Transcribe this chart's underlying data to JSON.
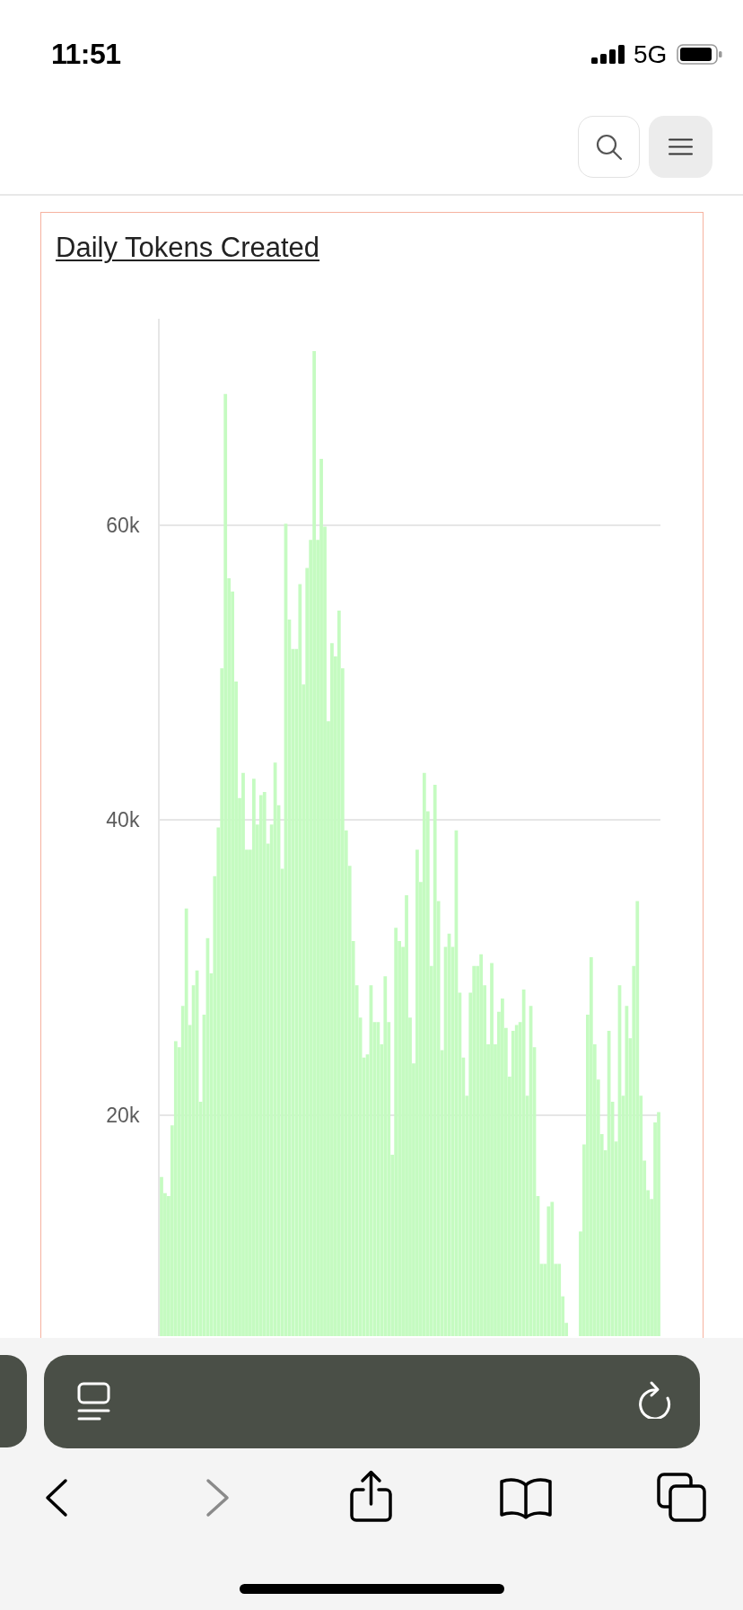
{
  "chart_data": {
    "type": "bar",
    "title": "Daily Tokens Created",
    "categories": [
      null,
      null,
      null,
      null,
      null,
      null,
      null,
      null,
      null,
      null,
      null,
      null,
      null,
      null,
      null,
      null,
      null,
      null,
      null,
      null,
      null,
      null,
      null,
      null,
      null,
      null,
      null,
      null,
      null,
      null,
      null,
      null,
      null,
      null,
      null,
      null,
      null,
      null,
      null,
      null,
      null,
      null,
      null,
      null,
      null,
      null,
      null,
      null,
      null,
      null,
      null,
      null,
      null,
      null,
      null,
      null,
      null,
      null,
      null,
      null,
      null,
      null,
      null,
      null,
      null,
      null,
      null,
      null,
      null,
      null,
      null,
      null,
      null,
      null,
      null,
      null,
      null,
      null,
      null,
      null,
      null,
      null,
      null,
      null,
      null,
      null,
      null,
      null,
      null,
      null,
      null,
      null,
      null,
      null,
      null,
      null,
      null,
      null,
      null,
      null,
      null,
      null,
      null,
      null,
      null,
      null,
      null,
      null,
      null,
      null,
      null,
      null,
      null,
      null,
      null,
      null,
      null,
      null,
      null,
      null,
      null,
      null,
      null,
      null,
      null,
      null,
      null,
      null,
      null,
      null,
      null,
      null,
      null,
      null,
      null,
      null,
      null,
      null,
      null,
      null,
      null
    ],
    "values": [
      15800,
      14700,
      14500,
      19300,
      25000,
      24600,
      27400,
      34000,
      26100,
      28800,
      29800,
      20900,
      26800,
      32000,
      29600,
      36200,
      39500,
      50300,
      68900,
      56400,
      55500,
      49400,
      41500,
      43200,
      38000,
      38000,
      42800,
      39700,
      41700,
      41900,
      38400,
      39700,
      43900,
      41000,
      36700,
      60100,
      53600,
      51600,
      51600,
      56000,
      49200,
      57100,
      59000,
      71800,
      59000,
      64500,
      59900,
      46700,
      52000,
      51100,
      54200,
      50300,
      39300,
      36900,
      31800,
      28800,
      26600,
      23900,
      24100,
      28800,
      26300,
      26300,
      24800,
      29400,
      26300,
      17300,
      32700,
      31800,
      31400,
      34900,
      26600,
      23500,
      38000,
      35800,
      43200,
      40600,
      30100,
      42400,
      34500,
      24400,
      31400,
      32300,
      31400,
      39300,
      28300,
      23900,
      21300,
      28300,
      30100,
      30100,
      30900,
      28800,
      24800,
      30300,
      24800,
      27000,
      27900,
      25900,
      22600,
      25700,
      26100,
      26300,
      28500,
      21300,
      27400,
      24600,
      14500,
      9900,
      9900,
      13800,
      14100,
      9900,
      9900,
      7700,
      5900,
      null,
      null,
      null,
      12100,
      18000,
      26800,
      30700,
      24800,
      22400,
      18700,
      17600,
      25700,
      20900,
      18200,
      28800,
      21300,
      27400,
      25200,
      30100,
      34500,
      21300,
      16900,
      14900,
      14300,
      19500,
      20200
    ],
    "color": "#c5fbc1",
    "ylim": [
      5000,
      74000
    ],
    "yticks": [
      {
        "value": 20000,
        "label": "20k"
      },
      {
        "value": 40000,
        "label": "40k"
      },
      {
        "value": 60000,
        "label": "60k"
      }
    ],
    "grid": "y",
    "tick_labels": "y",
    "annotations": [
      "11:51",
      "5G"
    ]
  }
}
